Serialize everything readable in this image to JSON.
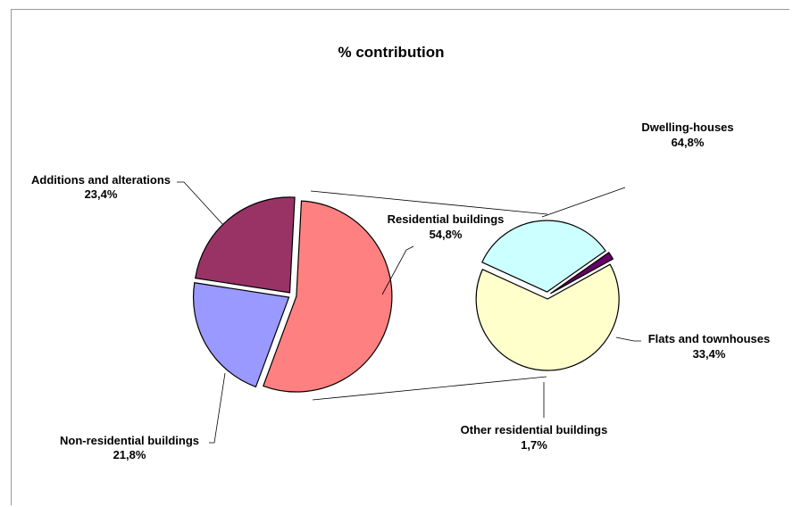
{
  "chart_data": {
    "type": "pie",
    "title": "% contribution",
    "main_pie": [
      {
        "label": "Residential buildings",
        "pct_text": "54,8%",
        "value": 54.8,
        "color": "#FF8080"
      },
      {
        "label": "Non-residential buildings",
        "pct_text": "21,8%",
        "value": 21.8,
        "color": "#9999FF"
      },
      {
        "label": "Additions and alterations",
        "pct_text": "23,4%",
        "value": 23.4,
        "color": "#993366"
      }
    ],
    "sub_pie": [
      {
        "label": "Dwelling-houses",
        "pct_text": "64,8%",
        "value": 64.8,
        "color": "#FFFFCC"
      },
      {
        "label": "Flats and townhouses",
        "pct_text": "33,4%",
        "value": 33.4,
        "color": "#CCFFFF"
      },
      {
        "label": "Other residential buildings",
        "pct_text": "1,7%",
        "value": 1.7,
        "color": "#660066"
      }
    ]
  }
}
